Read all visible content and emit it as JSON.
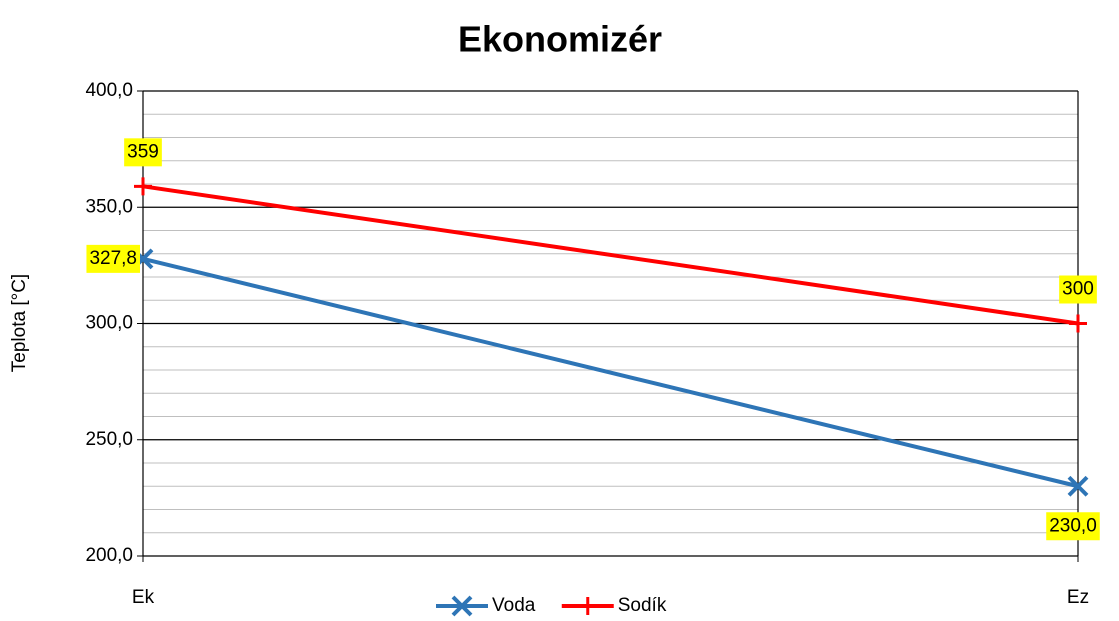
{
  "chart_data": {
    "type": "line",
    "title": "Ekonomizér",
    "y_label": "Teplota [°C]",
    "categories": [
      "Ek",
      "Ez"
    ],
    "series": [
      {
        "name": "Voda",
        "color": "#2e75b6",
        "marker": "x",
        "values": [
          327.8,
          230.0
        ],
        "value_labels": [
          "327,8",
          "230,0"
        ]
      },
      {
        "name": "Sodík",
        "color": "#ff0000",
        "marker": "+",
        "values": [
          359,
          300
        ]
      }
    ],
    "ylim": [
      200,
      400
    ],
    "yticks": [
      {
        "value": 200,
        "label": "200,0"
      },
      {
        "value": 250,
        "label": "250,0"
      },
      {
        "value": 300,
        "label": "300,0"
      },
      {
        "value": 350,
        "label": "350,0"
      },
      {
        "value": 400,
        "label": "400,0"
      }
    ],
    "minor_yticks": [
      210,
      220,
      230,
      240,
      260,
      270,
      280,
      290,
      310,
      320,
      330,
      340,
      360,
      370,
      380,
      390
    ],
    "grid": true,
    "legend": "bottom",
    "label_background": "#ffff00"
  }
}
